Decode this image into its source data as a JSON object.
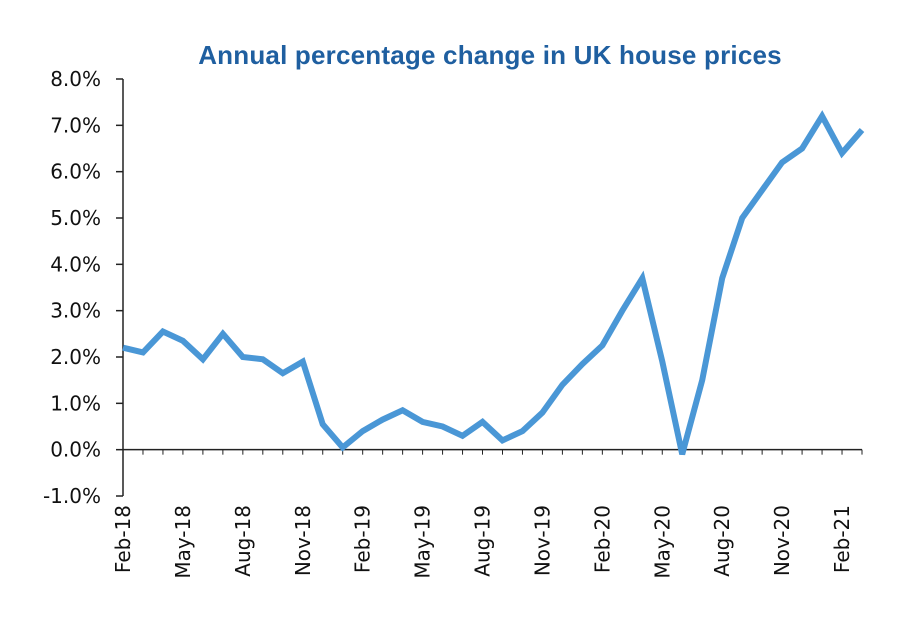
{
  "chart_data": {
    "type": "line",
    "title": "Annual percentage change in UK house prices",
    "xlabel": "",
    "ylabel": "",
    "ylim": [
      -1.0,
      8.0
    ],
    "yticks": [
      "8.0%",
      "7.0%",
      "6.0%",
      "5.0%",
      "4.0%",
      "3.0%",
      "2.0%",
      "1.0%",
      "0.0%",
      "-1.0%"
    ],
    "ytick_values": [
      8,
      7,
      6,
      5,
      4,
      3,
      2,
      1,
      0,
      -1
    ],
    "xtick_labels": [
      "Feb-18",
      "May-18",
      "Aug-18",
      "Nov-18",
      "Feb-19",
      "May-19",
      "Aug-19",
      "Nov-19",
      "Feb-20",
      "May-20",
      "Aug-20",
      "Nov-20",
      "Feb-21"
    ],
    "xtick_index": [
      0,
      3,
      6,
      9,
      12,
      15,
      18,
      21,
      24,
      27,
      30,
      33,
      36
    ],
    "line_color": "#4a97d6",
    "grid": false,
    "series": [
      {
        "values": [
          2.2,
          2.1,
          2.55,
          2.35,
          1.95,
          2.5,
          2.0,
          1.95,
          1.65,
          1.9,
          0.55,
          0.05,
          0.4,
          0.65,
          0.85,
          0.6,
          0.5,
          0.3,
          0.6,
          0.2,
          0.4,
          0.8,
          1.4,
          1.85,
          2.25,
          3.0,
          3.7,
          1.9,
          -0.1,
          1.5,
          3.7,
          5.0,
          5.6,
          6.2,
          6.5,
          7.2,
          6.4,
          6.9
        ]
      }
    ]
  }
}
